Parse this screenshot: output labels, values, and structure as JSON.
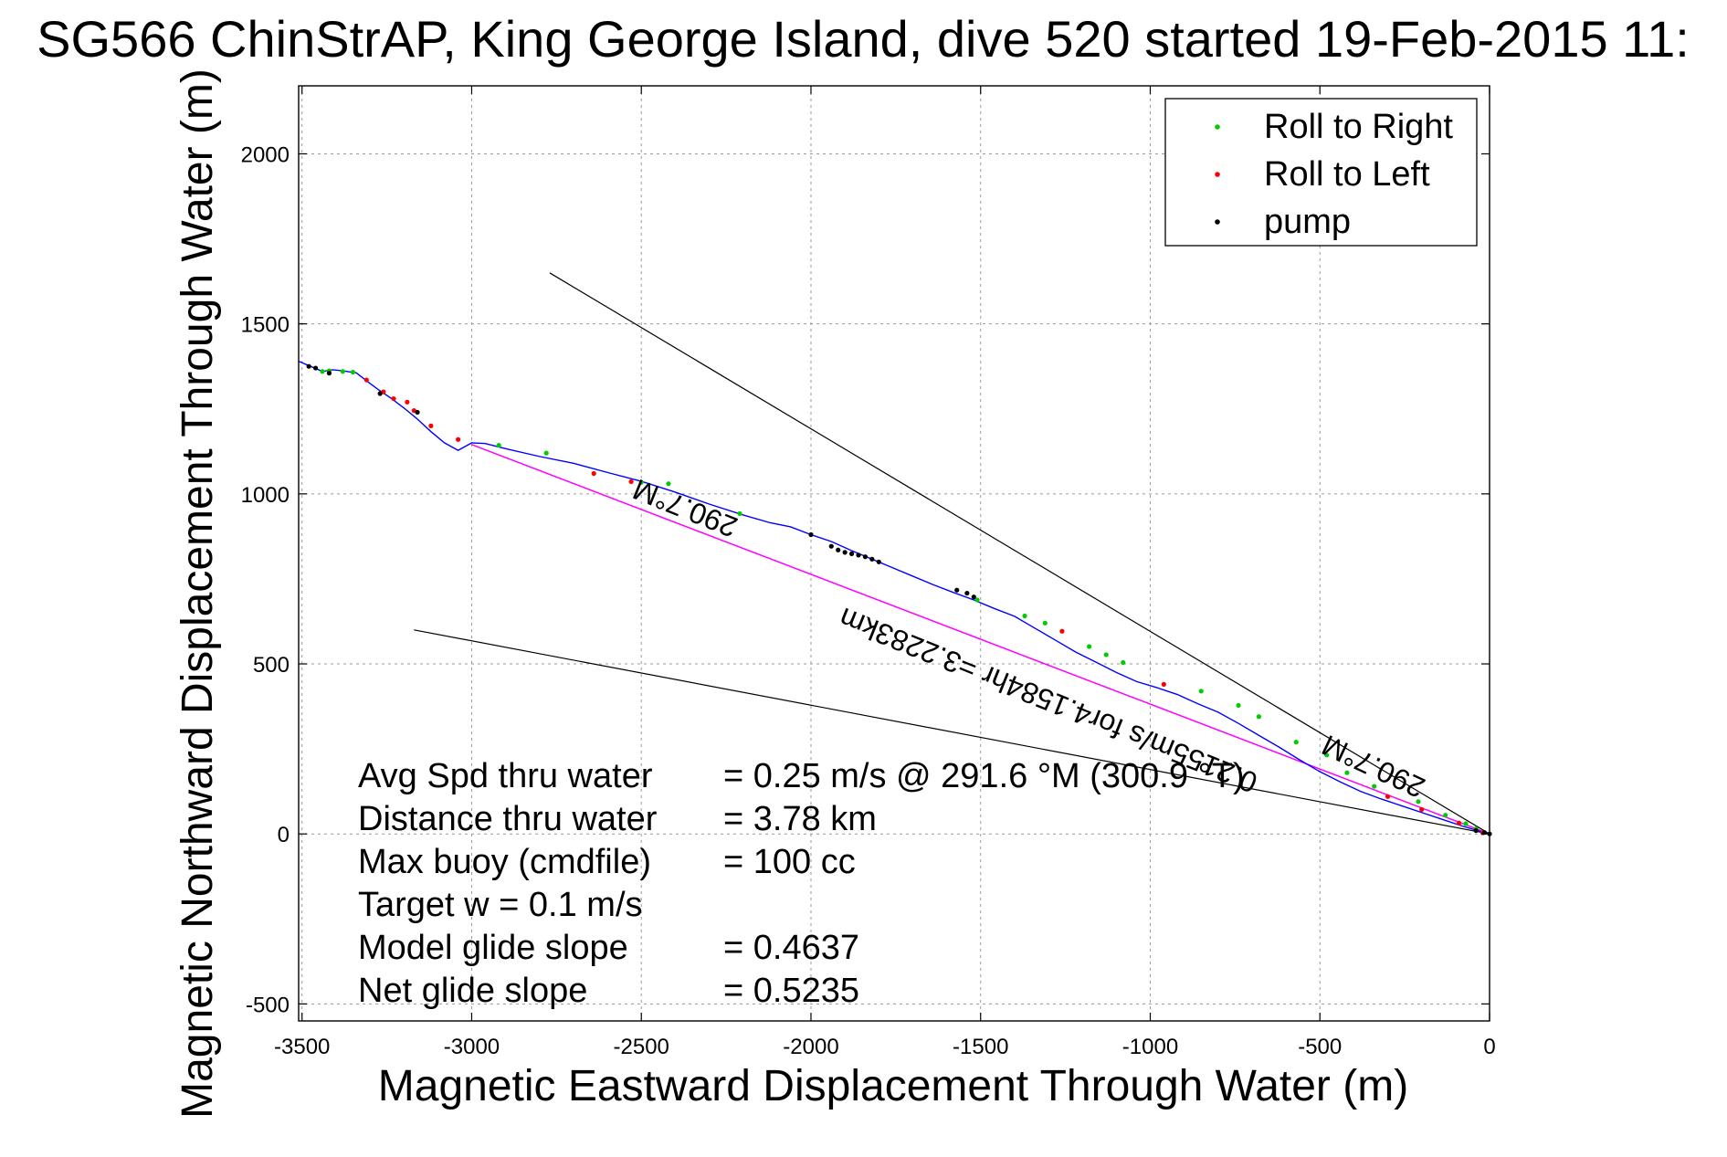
{
  "chart_data": {
    "type": "scatter",
    "title": "SG566 ChinStrAP, King George Island, dive 520 started 19-Feb-2015 11:",
    "xlabel": "Magnetic Eastward Displacement Through Water (m)",
    "ylabel": "Magnetic Northward Displacement Through Water (m)",
    "xlim": [
      -3510,
      0
    ],
    "ylim": [
      -550,
      2200
    ],
    "xticks": [
      -3500,
      -3000,
      -2500,
      -2000,
      -1500,
      -1000,
      -500,
      0
    ],
    "yticks": [
      -500,
      0,
      500,
      1000,
      1500,
      2000
    ],
    "xtick_labels": [
      "-3500",
      "-3000",
      "-2500",
      "-2000",
      "-1500",
      "-1000",
      "-500",
      "0"
    ],
    "ytick_labels": [
      "-500",
      "0",
      "500",
      "1000",
      "1500",
      "2000"
    ],
    "grid": true,
    "legend_position": "top-right",
    "legend": [
      {
        "label": "Roll to Right",
        "color": "#00cc00"
      },
      {
        "label": "Roll to Left",
        "color": "#ff0000"
      },
      {
        "label": "pump",
        "color": "#000000"
      }
    ],
    "colors": {
      "track": "#0000ff",
      "course": "#ff00ff",
      "bounds": "#000000"
    },
    "series": [
      {
        "kind": "track",
        "x": [
          -3510,
          -3470,
          -3440,
          -3410,
          -3380,
          -3340,
          -3300,
          -3270,
          -3240,
          -3200,
          -3160,
          -3120,
          -3080,
          -3040,
          -3000,
          -2960,
          -2900,
          -2800,
          -2700,
          -2600,
          -2500,
          -2400,
          -2300,
          -2200,
          -2120,
          -2060,
          -2000,
          -1940,
          -1880,
          -1820,
          -1760,
          -1700,
          -1640,
          -1580,
          -1520,
          -1460,
          -1400,
          -1340,
          -1280,
          -1220,
          -1160,
          -1100,
          -1040,
          -980,
          -920,
          -860,
          -800,
          -740,
          -680,
          -620,
          -560,
          -500,
          -440,
          -380,
          -320,
          -260,
          -200,
          -140,
          -80,
          -30,
          0
        ],
        "y": [
          1390,
          1373,
          1360,
          1365,
          1362,
          1356,
          1325,
          1303,
          1283,
          1253,
          1220,
          1183,
          1150,
          1128,
          1150,
          1148,
          1133,
          1110,
          1090,
          1063,
          1037,
          1005,
          970,
          938,
          915,
          903,
          880,
          860,
          833,
          808,
          783,
          758,
          733,
          710,
          688,
          663,
          640,
          605,
          570,
          535,
          505,
          475,
          448,
          430,
          410,
          383,
          358,
          325,
          290,
          255,
          218,
          183,
          153,
          125,
          103,
          83,
          63,
          43,
          23,
          8,
          0
        ]
      },
      {
        "kind": "course",
        "x": [
          -3000,
          0
        ],
        "y": [
          1145,
          0
        ]
      },
      {
        "kind": "bound-upper",
        "x": [
          -2770,
          0
        ],
        "y": [
          1650,
          0
        ]
      },
      {
        "kind": "bound-lower",
        "x": [
          -3170,
          0
        ],
        "y": [
          600,
          0
        ]
      }
    ],
    "markers": {
      "roll_right": {
        "x": [
          -3440,
          -3420,
          -3380,
          -3350,
          -2920,
          -2780,
          -2500,
          -2420,
          -2210,
          -1510,
          -1370,
          -1310,
          -1180,
          -1130,
          -1080,
          -850,
          -740,
          -680,
          -570,
          -480,
          -420,
          -340,
          -210,
          -130,
          -70,
          -40
        ],
        "y": [
          1360,
          1362,
          1360,
          1358,
          1143,
          1120,
          1034,
          1030,
          942,
          688,
          641,
          620,
          551,
          527,
          504,
          420,
          378,
          345,
          270,
          232,
          180,
          140,
          95,
          55,
          30,
          15
        ]
      },
      "roll_left": {
        "x": [
          -3310,
          -3260,
          -3230,
          -3190,
          -3170,
          -3120,
          -3040,
          -2640,
          -2530,
          -1260,
          -960,
          -300,
          -200,
          -90,
          -20
        ],
        "y": [
          1335,
          1300,
          1280,
          1270,
          1245,
          1200,
          1160,
          1060,
          1036,
          596,
          440,
          110,
          72,
          32,
          3
        ]
      },
      "pump": {
        "x": [
          -3480,
          -3460,
          -3420,
          -3270,
          -3160,
          -2000,
          -1940,
          -1920,
          -1900,
          -1880,
          -1860,
          -1840,
          -1820,
          -1800,
          -1570,
          -1540,
          -1520,
          -40,
          -15,
          0
        ],
        "y": [
          1375,
          1370,
          1355,
          1295,
          1240,
          880,
          846,
          835,
          828,
          824,
          820,
          815,
          808,
          800,
          717,
          708,
          697,
          10,
          4,
          0
        ]
      }
    },
    "annotations": [
      {
        "text": "290.7°M",
        "x": -2360,
        "y": 985,
        "rotation_deg": 202
      },
      {
        "text": "290.7°M",
        "x": -330,
        "y": 225,
        "rotation_deg": 205
      },
      {
        "text": "0.2155m/s for4.1584hr =3.2283km",
        "x": -1290,
        "y": 420,
        "rotation_deg": 202
      }
    ],
    "stats": [
      {
        "label": "Avg Spd thru water",
        "value": "=  0.25 m/s @ 291.6 °M (300.9 °T)"
      },
      {
        "label": "Distance thru water",
        "value": "=  3.78 km"
      },
      {
        "label": "Max buoy (cmdfile)",
        "value": "= 100 cc"
      },
      {
        "label": "Target w    = 0.1 m/s",
        "value": ""
      },
      {
        "label": "Model glide slope",
        "value": "= 0.4637"
      },
      {
        "label": "Net glide slope",
        "value": "= 0.5235"
      }
    ]
  }
}
